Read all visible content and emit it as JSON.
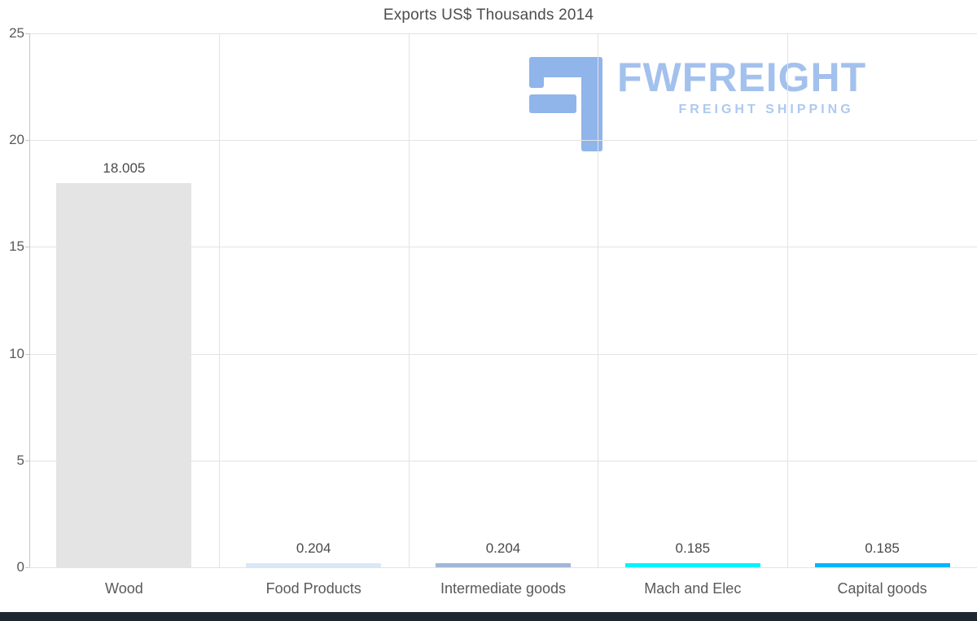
{
  "title": "Exports US$ Thousands 2014",
  "watermark": {
    "brand": "FWFREIGHT",
    "tagline": "FREIGHT SHIPPING"
  },
  "chart_data": {
    "type": "bar",
    "title": "Exports US$ Thousands 2014",
    "categories": [
      "Wood",
      "Food Products",
      "Intermediate goods",
      "Mach and Elec",
      "Capital goods"
    ],
    "values": [
      18.005,
      0.204,
      0.204,
      0.185,
      0.185
    ],
    "value_labels": [
      "18.005",
      "0.204",
      "0.204",
      "0.185",
      "0.185"
    ],
    "bar_colors": [
      "#e4e4e4",
      "#d9e7f8",
      "#9fb7d9",
      "#00f2ff",
      "#00b6ff"
    ],
    "ylim": [
      0,
      25
    ],
    "yticks": [
      0,
      5,
      10,
      15,
      20,
      25
    ],
    "grid": true,
    "legend": "none",
    "xlabel": "",
    "ylabel": ""
  },
  "colors": {
    "grid": "#e3e3e3",
    "axis": "#c6c6c6",
    "tick_text": "#595959",
    "value_text": "#4a4a4a",
    "title_text": "#4d4d4d",
    "bottom_bar": "#1d2833",
    "watermark_glyph": "#8fb5ea",
    "watermark_text": "#a3c1ed",
    "watermark_tagline": "#aec9f0"
  }
}
